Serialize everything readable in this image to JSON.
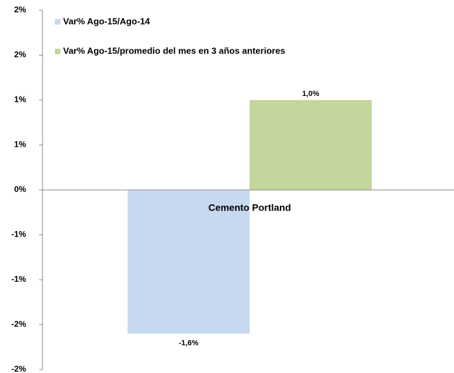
{
  "chart_data": {
    "type": "bar",
    "categories": [
      "Cemento Portland"
    ],
    "series": [
      {
        "name": "Var% Ago-15/Ago-14",
        "color": "#c6d9f1",
        "values": [
          -1.6
        ],
        "value_labels": [
          "-1,6%"
        ]
      },
      {
        "name": "Var% Ago-15/promedio del mes en 3 años anteriores",
        "color": "#c3d69b",
        "values": [
          1.0
        ],
        "value_labels": [
          "1,0%"
        ]
      }
    ],
    "ylim": [
      -2,
      2
    ],
    "yticks": [
      {
        "value": -2,
        "label": "-2%"
      },
      {
        "value": -1.5,
        "label": "-2%"
      },
      {
        "value": -1,
        "label": "-1%"
      },
      {
        "value": -0.5,
        "label": "-1%"
      },
      {
        "value": 0,
        "label": "0%"
      },
      {
        "value": 0.5,
        "label": "1%"
      },
      {
        "value": 1,
        "label": "1%"
      },
      {
        "value": 1.5,
        "label": "2%"
      },
      {
        "value": 2,
        "label": "2%"
      }
    ],
    "legend": "top-left"
  }
}
